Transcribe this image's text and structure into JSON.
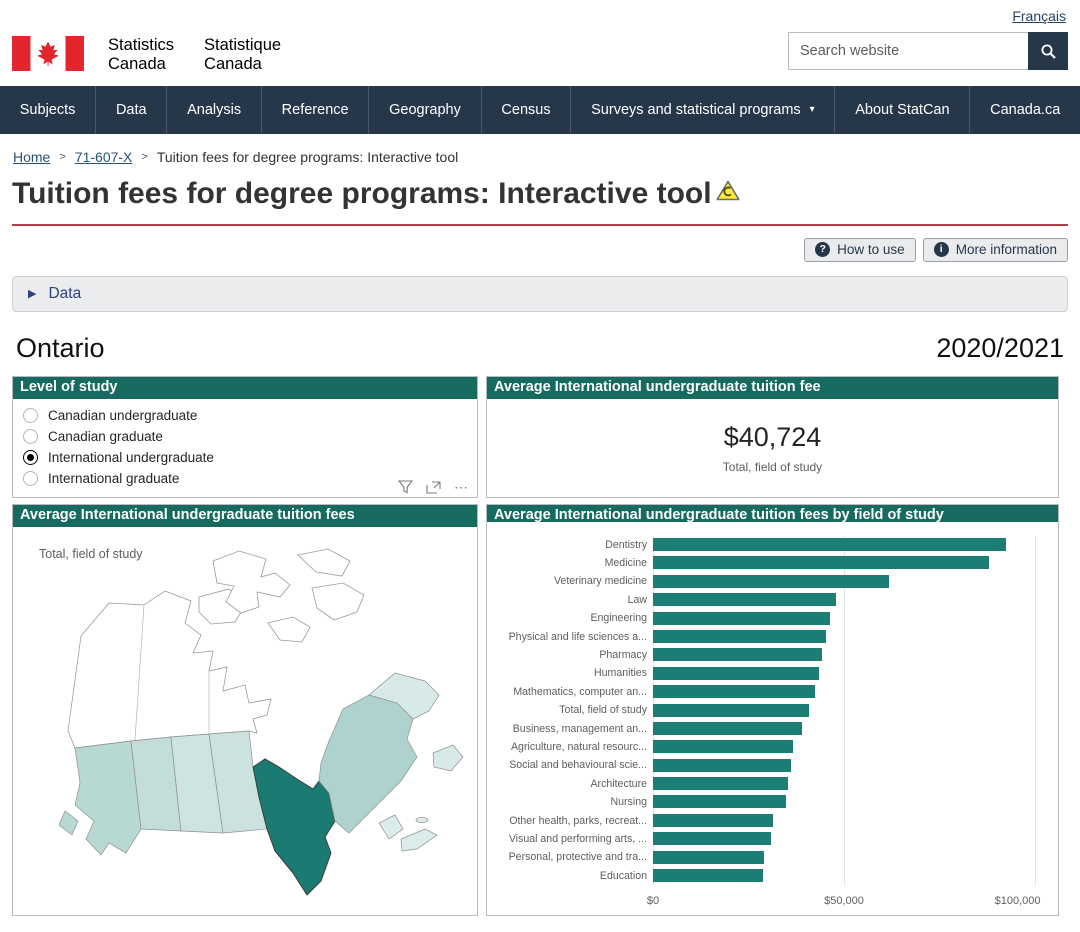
{
  "header": {
    "language_link": "Français",
    "logo": {
      "en_line1": "Statistics",
      "en_line2": "Canada",
      "fr_line1": "Statistique",
      "fr_line2": "Canada"
    },
    "search": {
      "placeholder": "Search website"
    }
  },
  "nav": {
    "dropdown_glyph": "▾",
    "items": [
      {
        "label": "Subjects"
      },
      {
        "label": "Data"
      },
      {
        "label": "Analysis"
      },
      {
        "label": "Reference"
      },
      {
        "label": "Geography"
      },
      {
        "label": "Census"
      },
      {
        "label": "Surveys and statistical programs",
        "dropdown": true
      },
      {
        "label": "About StatCan"
      },
      {
        "label": "Canada.ca"
      }
    ]
  },
  "breadcrumb": {
    "separator": ">",
    "items": [
      {
        "label": "Home",
        "link": true
      },
      {
        "label": "71-607-X",
        "link": true
      },
      {
        "label": "Tuition fees for degree programs: Interactive tool",
        "link": false
      }
    ]
  },
  "page": {
    "title": "Tuition fees for degree programs: Interactive tool",
    "actions": [
      {
        "glyph": "?",
        "label": "How to use"
      },
      {
        "glyph": "i",
        "label": "More information"
      }
    ]
  },
  "accordion": {
    "glyph": "▶",
    "label": "Data"
  },
  "dashboard": {
    "region": "Ontario",
    "school_year": "2020/2021"
  },
  "level_of_study": {
    "title": "Level of study",
    "options": [
      {
        "label": "Canadian undergraduate",
        "selected": false
      },
      {
        "label": "Canadian graduate",
        "selected": false
      },
      {
        "label": "International undergraduate",
        "selected": true
      },
      {
        "label": "International graduate",
        "selected": false
      }
    ],
    "more_options_glyph": "⋯"
  },
  "fee_panel": {
    "title": "Average International undergraduate tuition fee",
    "value": "$40,724",
    "note": "Total, field of study"
  },
  "map_panel": {
    "title": "Average International undergraduate tuition fees",
    "note": "Total, field of study",
    "selected_region": "Ontario",
    "regions": [
      {
        "id": "terr",
        "name": "Territories",
        "fill": "#ffffff"
      },
      {
        "id": "bc",
        "name": "British Columbia",
        "fill": "#b7d8d3"
      },
      {
        "id": "vi",
        "name": "Vancouver Island",
        "fill": "#b7d8d3"
      },
      {
        "id": "ab",
        "name": "Alberta",
        "fill": "#c3ded9"
      },
      {
        "id": "sk",
        "name": "Saskatchewan",
        "fill": "#cde4e0"
      },
      {
        "id": "mb",
        "name": "Manitoba",
        "fill": "#cbe2de"
      },
      {
        "id": "on",
        "name": "Ontario",
        "fill": "#1b7a71"
      },
      {
        "id": "qc",
        "name": "Quebec",
        "fill": "#aed3ce"
      },
      {
        "id": "lab",
        "name": "Labrador",
        "fill": "#d8eae7"
      },
      {
        "id": "nf",
        "name": "Newfoundland",
        "fill": "#d8eae7"
      },
      {
        "id": "nb",
        "name": "New Brunswick",
        "fill": "#dcecea"
      },
      {
        "id": "ns",
        "name": "Nova Scotia",
        "fill": "#dcecea"
      },
      {
        "id": "pei",
        "name": "Prince Edward Island",
        "fill": "#dcecea"
      }
    ]
  },
  "chart_data": {
    "type": "bar",
    "orientation": "horizontal",
    "title": "Average International undergraduate tuition fees by field of study",
    "categories": [
      "Dentistry",
      "Medicine",
      "Veterinary medicine",
      "Law",
      "Engineering",
      "Physical and life sciences a...",
      "Pharmacy",
      "Humanities",
      "Mathematics, computer an...",
      "Total, field of study",
      "Business, management an...",
      "Agriculture, natural resourc...",
      "Social and behavioural scie...",
      "Architecture",
      "Nursing",
      "Other health, parks, recreat...",
      "Visual and performing arts, ...",
      "Personal, protective and tra...",
      "Education"
    ],
    "values": [
      92400,
      88000,
      61800,
      48000,
      46200,
      45400,
      44300,
      43400,
      42300,
      40724,
      38900,
      36700,
      36000,
      35300,
      34700,
      31300,
      31000,
      29000,
      28700
    ],
    "x_ticks": [
      "$0",
      "$50,000",
      "$100,000"
    ],
    "xlim": [
      0,
      105000
    ],
    "grid": true,
    "bar_color": "#1b7d74",
    "legend": "none"
  },
  "colors": {
    "nav_bg": "#26374a",
    "panel_header_teal": "#166a60",
    "rule_red": "#af3c43",
    "link_blue": "#295376",
    "button_bg": "#eaebed"
  }
}
